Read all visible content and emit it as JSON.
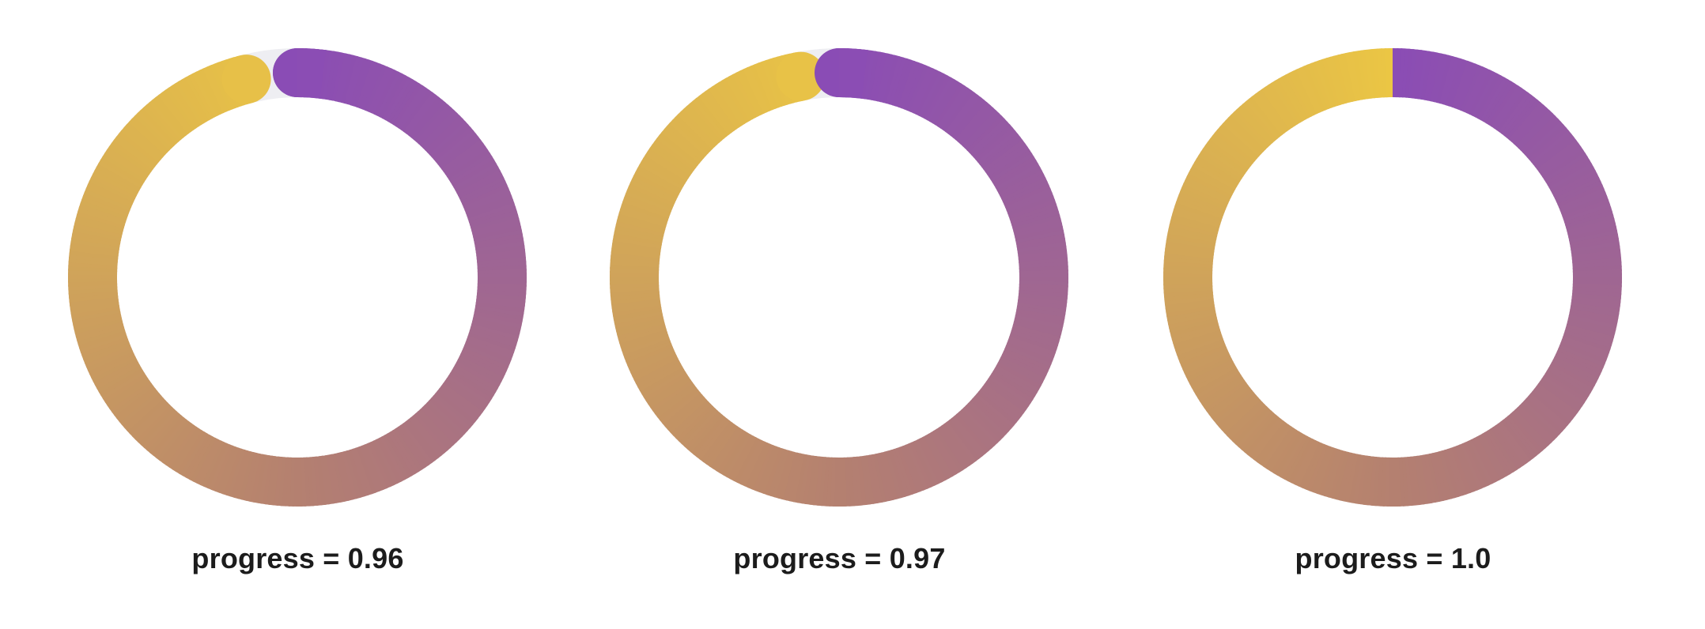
{
  "palette": {
    "gradient_start": "#8a4cb5",
    "gradient_mid": "#b48070",
    "gradient_end": "#ebc644",
    "track": "#eeeef2"
  },
  "rings": [
    {
      "progress": 0.96,
      "label": "progress = 0.96"
    },
    {
      "progress": 0.97,
      "label": "progress = 0.97"
    },
    {
      "progress": 1.0,
      "label": "progress = 1.0"
    }
  ]
}
